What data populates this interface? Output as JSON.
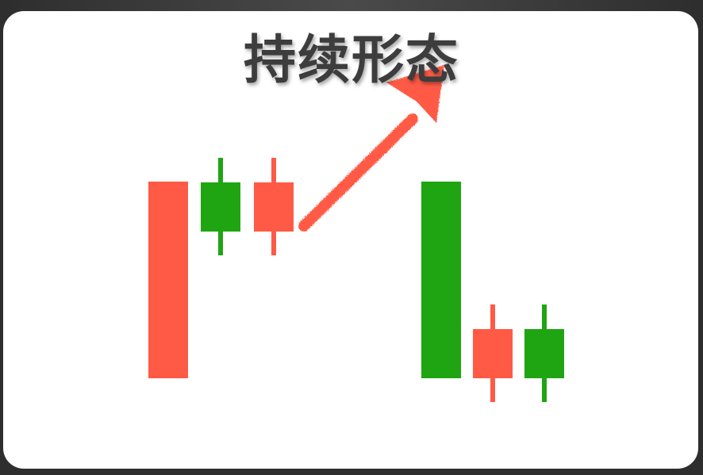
{
  "title": "持续形态",
  "colors": {
    "bullish": "#ff5a45",
    "bearish": "#1fa512",
    "arrow": "#ff5a45",
    "title": "#3d3d3d",
    "frame": "#333333"
  },
  "patterns": [
    {
      "name": "rising-continuation",
      "candles": [
        {
          "color": "bullish"
        },
        {
          "color": "bearish"
        },
        {
          "color": "bullish"
        }
      ],
      "arrow": "up-right"
    },
    {
      "name": "falling-continuation",
      "candles": [
        {
          "color": "bearish"
        },
        {
          "color": "bullish"
        },
        {
          "color": "bearish"
        }
      ]
    }
  ]
}
